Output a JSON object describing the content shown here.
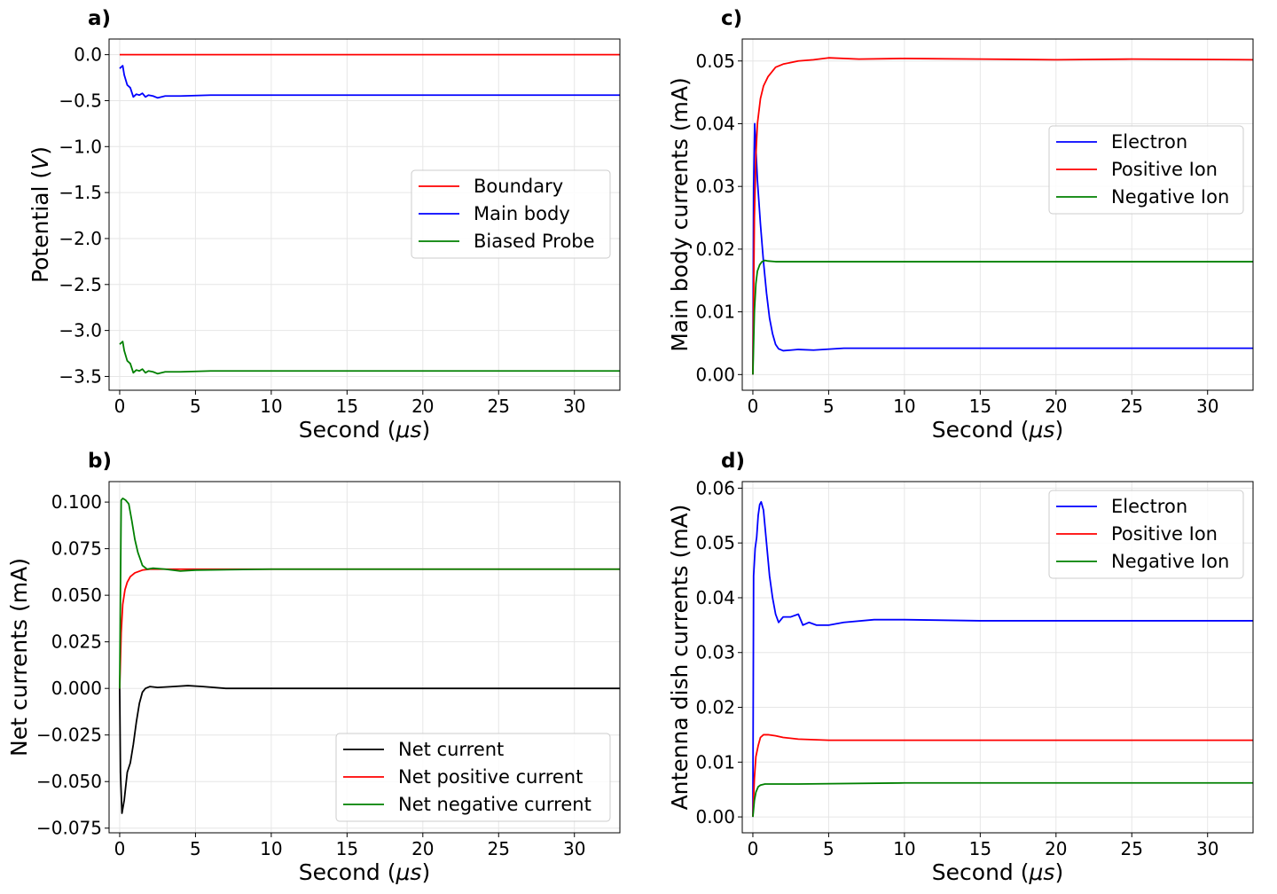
{
  "chart_data": [
    {
      "id": "a",
      "type": "line",
      "panel_label": "a)",
      "ylabel": "Potential (",
      "ylabel_unit": "V",
      "ylabel_close": ")",
      "xlabel": "Second (",
      "xlabel_unit": "μs",
      "xlabel_close": ")",
      "xlim": [
        -0.7,
        33
      ],
      "ylim": [
        -3.65,
        0.17
      ],
      "xticks": [
        0,
        5,
        10,
        15,
        20,
        25,
        30
      ],
      "xtick_labels": [
        "0",
        "5",
        "10",
        "15",
        "20",
        "25",
        "30"
      ],
      "yticks": [
        0.0,
        -0.5,
        -1.0,
        -1.5,
        -2.0,
        -2.5,
        -3.0,
        -3.5
      ],
      "ytick_labels": [
        "0.0",
        "−0.5",
        "−1.0",
        "−1.5",
        "−2.0",
        "−2.5",
        "−3.0",
        "−3.5"
      ],
      "legend_position": "center-right",
      "grid": true,
      "series": [
        {
          "name": "Boundary",
          "color": "#ff0000",
          "x": [
            0,
            33
          ],
          "y": [
            0,
            0
          ]
        },
        {
          "name": "Main body",
          "color": "#0000ff",
          "x": [
            0,
            0.2,
            0.3,
            0.5,
            0.7,
            0.9,
            1.1,
            1.3,
            1.5,
            1.7,
            1.9,
            2.2,
            2.5,
            3,
            4,
            6,
            10,
            20,
            33
          ],
          "y": [
            -0.15,
            -0.12,
            -0.22,
            -0.33,
            -0.36,
            -0.46,
            -0.43,
            -0.44,
            -0.42,
            -0.46,
            -0.44,
            -0.45,
            -0.47,
            -0.45,
            -0.45,
            -0.44,
            -0.44,
            -0.44,
            -0.44
          ]
        },
        {
          "name": "Biased Probe",
          "color": "#008000",
          "x": [
            0,
            0.2,
            0.3,
            0.5,
            0.7,
            0.9,
            1.1,
            1.3,
            1.5,
            1.7,
            1.9,
            2.2,
            2.5,
            3,
            4,
            6,
            10,
            20,
            33
          ],
          "y": [
            -3.15,
            -3.12,
            -3.22,
            -3.33,
            -3.36,
            -3.46,
            -3.43,
            -3.44,
            -3.42,
            -3.46,
            -3.44,
            -3.45,
            -3.47,
            -3.45,
            -3.45,
            -3.44,
            -3.44,
            -3.44,
            -3.44
          ]
        }
      ]
    },
    {
      "id": "c",
      "type": "line",
      "panel_label": "c)",
      "ylabel": "Main body currents (mA)",
      "xlabel": "Second (",
      "xlabel_unit": "μs",
      "xlabel_close": ")",
      "xlim": [
        -0.7,
        33
      ],
      "ylim": [
        -0.0025,
        0.0535
      ],
      "xticks": [
        0,
        5,
        10,
        15,
        20,
        25,
        30
      ],
      "xtick_labels": [
        "0",
        "5",
        "10",
        "15",
        "20",
        "25",
        "30"
      ],
      "yticks": [
        0.0,
        0.01,
        0.02,
        0.03,
        0.04,
        0.05
      ],
      "ytick_labels": [
        "0.00",
        "0.01",
        "0.02",
        "0.03",
        "0.04",
        "0.05"
      ],
      "legend_position": "center-right",
      "grid": true,
      "series": [
        {
          "name": "Electron",
          "color": "#0000ff",
          "x": [
            0,
            0.05,
            0.12,
            0.2,
            0.3,
            0.5,
            0.7,
            0.9,
            1.1,
            1.3,
            1.5,
            1.7,
            2.0,
            3,
            4,
            6,
            10,
            20,
            33
          ],
          "y": [
            0,
            0.03,
            0.04,
            0.036,
            0.031,
            0.024,
            0.018,
            0.013,
            0.009,
            0.0065,
            0.0048,
            0.0041,
            0.0038,
            0.004,
            0.0039,
            0.0042,
            0.0042,
            0.0042,
            0.0042
          ]
        },
        {
          "name": "Positive Ion",
          "color": "#ff0000",
          "x": [
            0,
            0.1,
            0.2,
            0.3,
            0.5,
            0.7,
            1.0,
            1.5,
            2,
            3,
            4,
            5,
            7,
            10,
            15,
            20,
            25,
            33
          ],
          "y": [
            0,
            0.025,
            0.035,
            0.04,
            0.044,
            0.046,
            0.0475,
            0.049,
            0.0495,
            0.05,
            0.0502,
            0.0505,
            0.0503,
            0.0504,
            0.0503,
            0.0502,
            0.0503,
            0.0502
          ]
        },
        {
          "name": "Negative Ion",
          "color": "#008000",
          "x": [
            0,
            0.1,
            0.2,
            0.3,
            0.45,
            0.6,
            0.8,
            1.0,
            1.5,
            3,
            10,
            20,
            33
          ],
          "y": [
            0,
            0.01,
            0.0145,
            0.0165,
            0.0175,
            0.018,
            0.0182,
            0.0181,
            0.018,
            0.018,
            0.018,
            0.018,
            0.018
          ]
        }
      ]
    },
    {
      "id": "b",
      "type": "line",
      "panel_label": "b)",
      "ylabel": "Net currents (mA)",
      "xlabel": "Second (",
      "xlabel_unit": "μs",
      "xlabel_close": ")",
      "xlim": [
        -0.7,
        33
      ],
      "ylim": [
        -0.0775,
        0.111
      ],
      "xticks": [
        0,
        5,
        10,
        15,
        20,
        25,
        30
      ],
      "xtick_labels": [
        "0",
        "5",
        "10",
        "15",
        "20",
        "25",
        "30"
      ],
      "yticks": [
        0.1,
        0.075,
        0.05,
        0.025,
        0.0,
        -0.025,
        -0.05,
        -0.075
      ],
      "ytick_labels": [
        "0.100",
        "0.075",
        "0.050",
        "0.025",
        "0.000",
        "−0.025",
        "−0.050",
        "−0.075"
      ],
      "legend_position": "lower-right",
      "grid": true,
      "series": [
        {
          "name": "Net current",
          "color": "#000000",
          "x": [
            0,
            0.05,
            0.15,
            0.3,
            0.5,
            0.7,
            0.9,
            1.1,
            1.3,
            1.5,
            1.7,
            2.0,
            2.5,
            3.5,
            4.5,
            5.5,
            7,
            10,
            20,
            33
          ],
          "y": [
            0,
            -0.045,
            -0.067,
            -0.06,
            -0.045,
            -0.04,
            -0.03,
            -0.018,
            -0.008,
            -0.002,
            0.0,
            0.001,
            0.0005,
            0.001,
            0.0015,
            0.001,
            0.0,
            0.0,
            0.0,
            0.0
          ]
        },
        {
          "name": "Net positive current",
          "color": "#ff0000",
          "x": [
            0,
            0.1,
            0.2,
            0.35,
            0.5,
            0.7,
            1.0,
            1.5,
            2.0,
            3,
            5,
            10,
            20,
            33
          ],
          "y": [
            0,
            0.03,
            0.045,
            0.053,
            0.057,
            0.06,
            0.062,
            0.0635,
            0.064,
            0.064,
            0.064,
            0.064,
            0.064,
            0.064
          ]
        },
        {
          "name": "Net negative current",
          "color": "#008000",
          "x": [
            0,
            0.1,
            0.2,
            0.4,
            0.6,
            0.8,
            1.0,
            1.2,
            1.5,
            1.8,
            2.2,
            3,
            4,
            5,
            10,
            20,
            33
          ],
          "y": [
            0,
            0.101,
            0.102,
            0.101,
            0.099,
            0.09,
            0.08,
            0.073,
            0.066,
            0.064,
            0.0645,
            0.064,
            0.063,
            0.0635,
            0.064,
            0.064,
            0.064
          ]
        }
      ]
    },
    {
      "id": "d",
      "type": "line",
      "panel_label": "d)",
      "ylabel": "Antenna dish currents (mA)",
      "xlabel": "Second (",
      "xlabel_unit": "μs",
      "xlabel_close": ")",
      "xlim": [
        -0.7,
        33
      ],
      "ylim": [
        -0.0029,
        0.0612
      ],
      "xticks": [
        0,
        5,
        10,
        15,
        20,
        25,
        30
      ],
      "xtick_labels": [
        "0",
        "5",
        "10",
        "15",
        "20",
        "25",
        "30"
      ],
      "yticks": [
        0.06,
        0.05,
        0.04,
        0.03,
        0.02,
        0.01,
        0.0
      ],
      "ytick_labels": [
        "0.06",
        "0.05",
        "0.04",
        "0.03",
        "0.02",
        "0.01",
        "0.00"
      ],
      "legend_position": "upper-right",
      "grid": true,
      "series": [
        {
          "name": "Electron",
          "color": "#0000ff",
          "x": [
            0,
            0.05,
            0.15,
            0.25,
            0.35,
            0.45,
            0.55,
            0.7,
            0.9,
            1.1,
            1.3,
            1.5,
            1.7,
            2.0,
            2.5,
            3.0,
            3.3,
            3.7,
            4.2,
            5,
            6,
            8,
            10,
            15,
            20,
            25,
            33
          ],
          "y": [
            0,
            0.044,
            0.049,
            0.051,
            0.055,
            0.057,
            0.0575,
            0.056,
            0.05,
            0.044,
            0.04,
            0.037,
            0.0355,
            0.0365,
            0.0365,
            0.037,
            0.035,
            0.0355,
            0.035,
            0.035,
            0.0355,
            0.036,
            0.036,
            0.0358,
            0.0358,
            0.0358,
            0.0358
          ]
        },
        {
          "name": "Positive Ion",
          "color": "#ff0000",
          "x": [
            0,
            0.1,
            0.2,
            0.35,
            0.5,
            0.7,
            1.0,
            1.5,
            2.0,
            3,
            5,
            10,
            20,
            33
          ],
          "y": [
            0,
            0.007,
            0.011,
            0.013,
            0.0145,
            0.015,
            0.015,
            0.0148,
            0.0145,
            0.0142,
            0.014,
            0.014,
            0.014,
            0.014
          ]
        },
        {
          "name": "Negative Ion",
          "color": "#008000",
          "x": [
            0,
            0.1,
            0.2,
            0.35,
            0.5,
            0.8,
            1.5,
            3,
            10,
            20,
            33
          ],
          "y": [
            0,
            0.003,
            0.0045,
            0.0055,
            0.0058,
            0.006,
            0.006,
            0.006,
            0.0062,
            0.0062,
            0.0062
          ]
        }
      ]
    }
  ]
}
